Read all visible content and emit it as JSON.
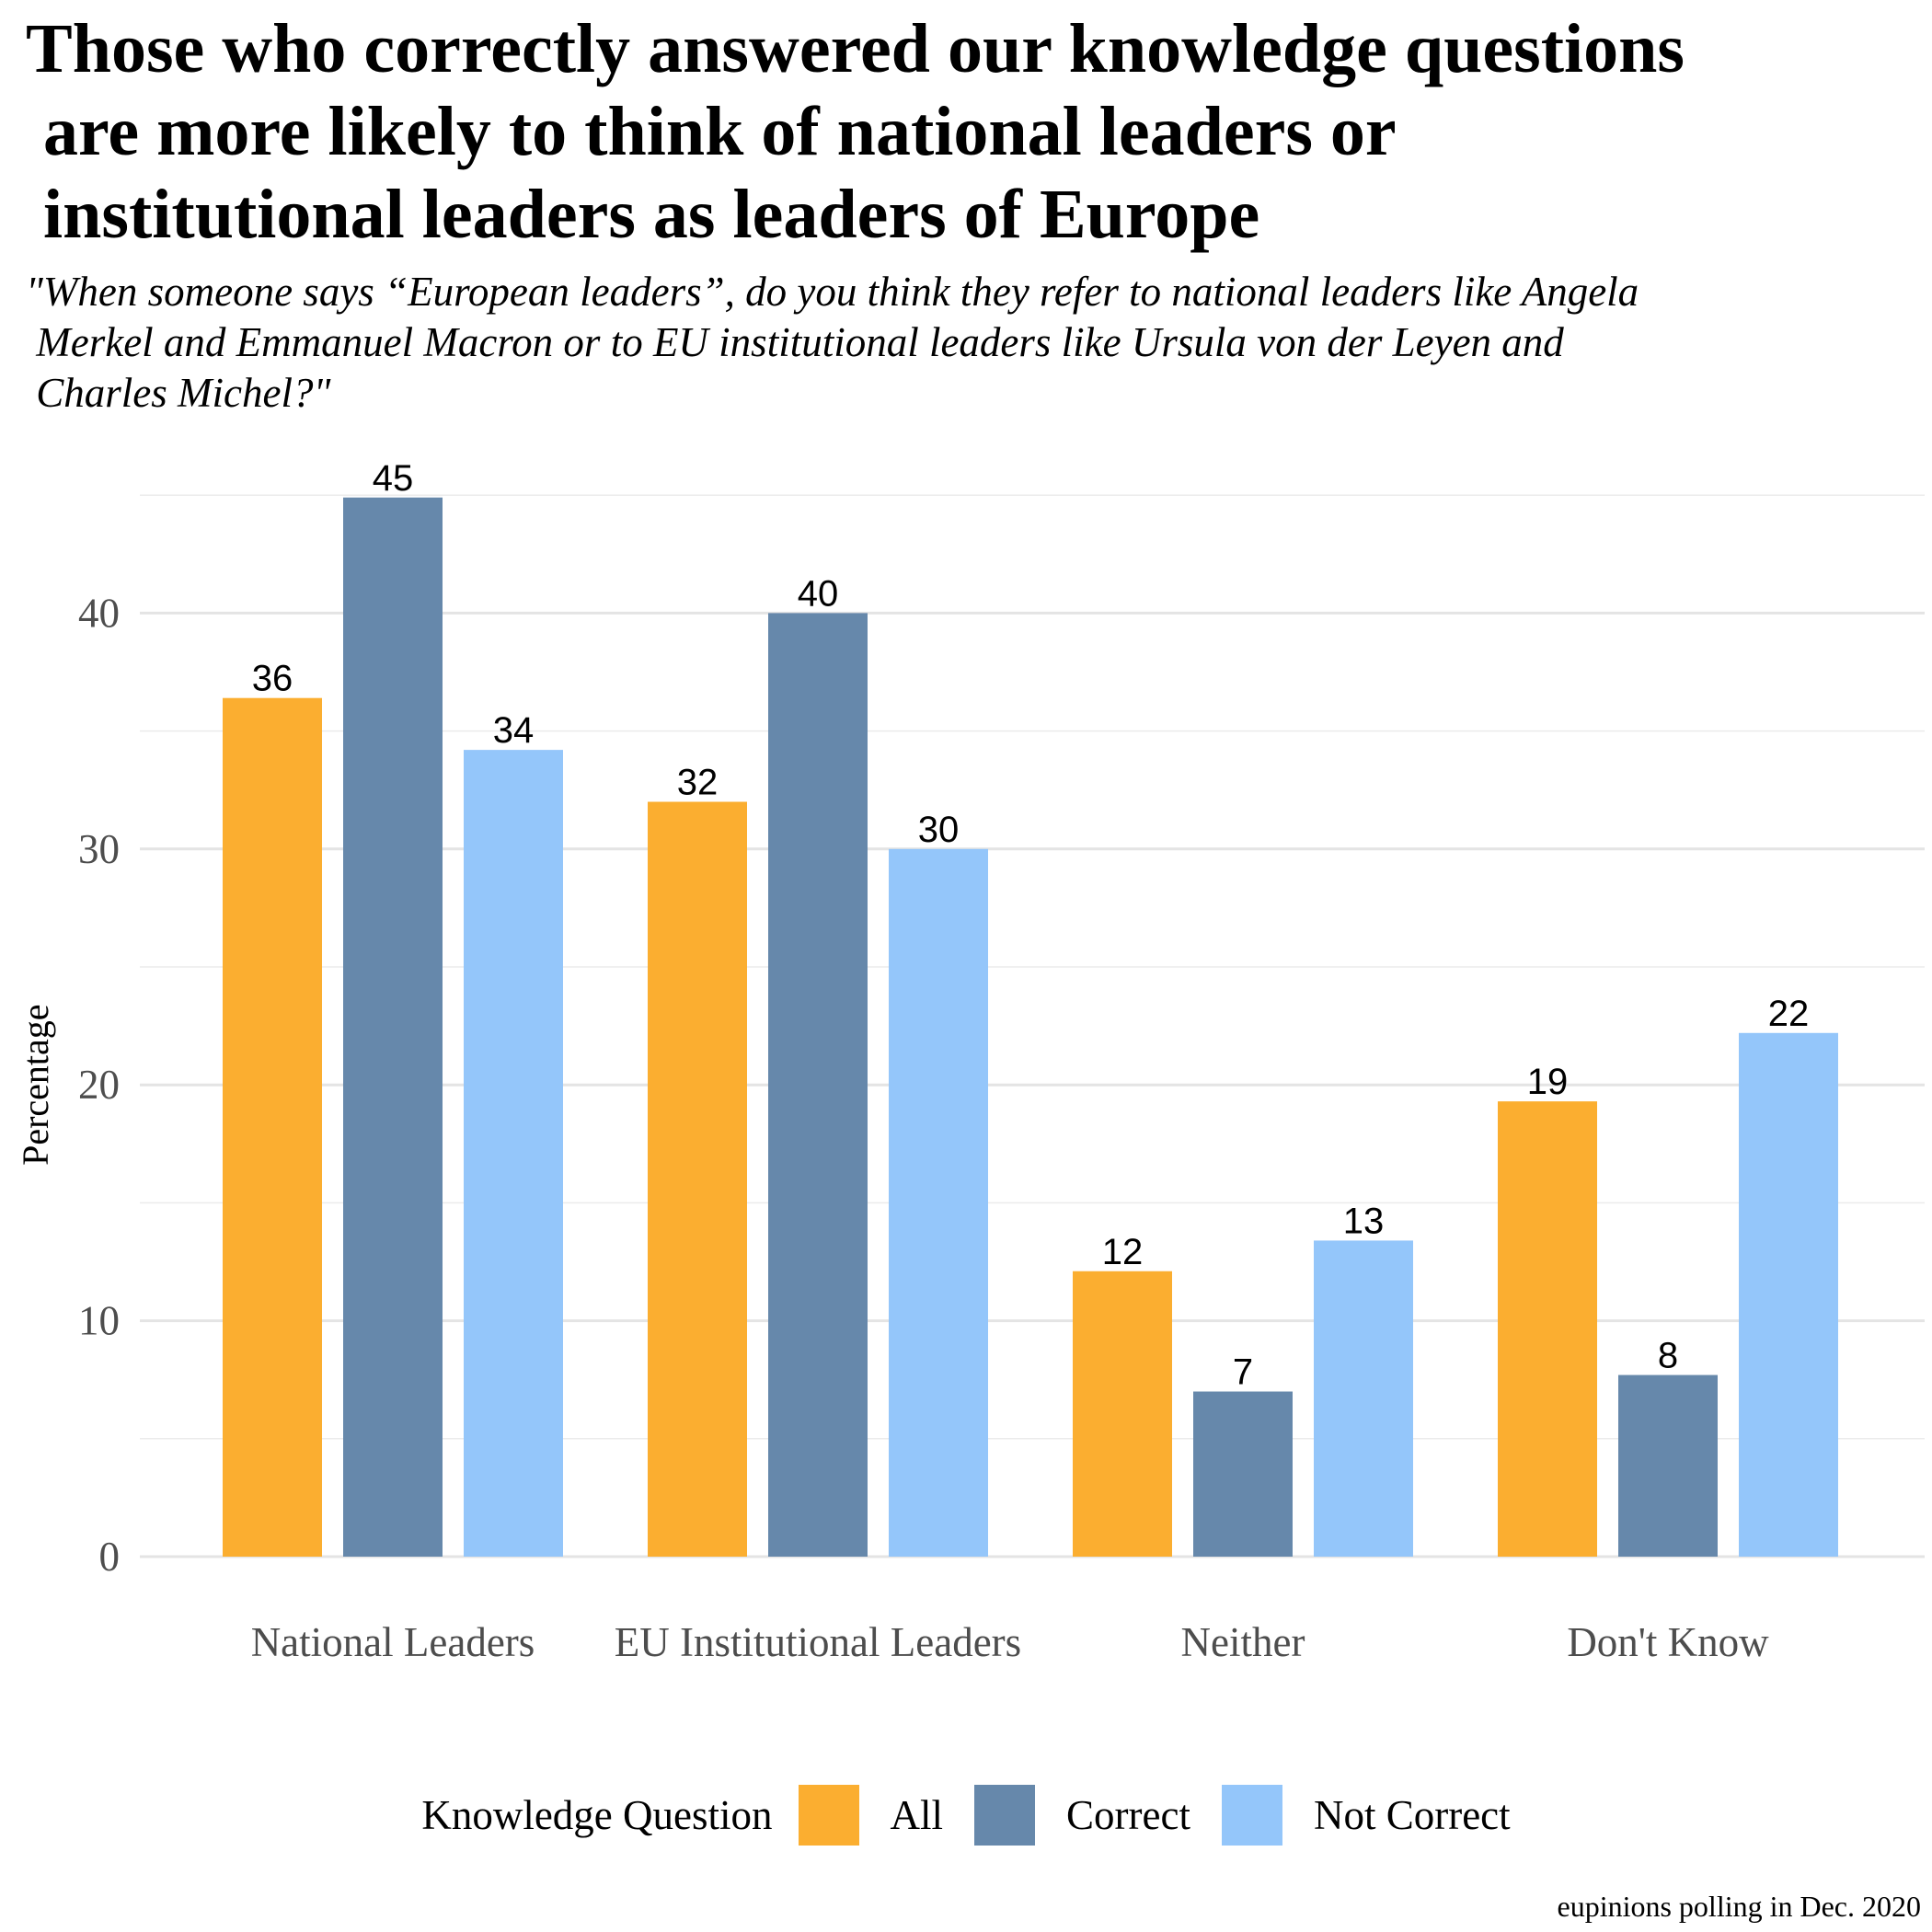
{
  "title_lines": [
    "Those who correctly answered our knowledge questions",
    " are more likely to think of national leaders or",
    " institutional leaders as leaders of Europe"
  ],
  "subtitle_lines": [
    "\"When someone says “European leaders”, do you think they refer to national leaders like Angela",
    " Merkel and Emmanuel Macron or to EU institutional leaders like Ursula von der Leyen and",
    " Charles Michel?\""
  ],
  "caption": "eupinions polling in Dec. 2020",
  "chart_data": {
    "type": "bar",
    "title": "Those who correctly answered our knowledge questions are more likely to think of national leaders or institutional leaders as leaders of Europe",
    "xlabel": "",
    "ylabel": "Percentage",
    "ylim": [
      0,
      45
    ],
    "yticks": [
      0,
      10,
      20,
      30,
      40
    ],
    "grid": true,
    "legend_position": "bottom",
    "legend_title": "Knowledge Question",
    "categories": [
      "National Leaders",
      "EU Institutional Leaders",
      "Neither",
      "Don't Know"
    ],
    "series": [
      {
        "name": "All",
        "color": "#FBAE30",
        "values": [
          36.4,
          32.0,
          12.1,
          19.3
        ],
        "labels": [
          "36",
          "32",
          "12",
          "19"
        ]
      },
      {
        "name": "Correct",
        "color": "#6688AB",
        "values": [
          44.9,
          40.0,
          7.0,
          7.7
        ],
        "labels": [
          "45",
          "40",
          "7",
          "8"
        ]
      },
      {
        "name": "Not Correct",
        "color": "#94C6FA",
        "values": [
          34.2,
          30.0,
          13.4,
          22.2
        ],
        "labels": [
          "34",
          "30",
          "13",
          "22"
        ]
      }
    ]
  }
}
